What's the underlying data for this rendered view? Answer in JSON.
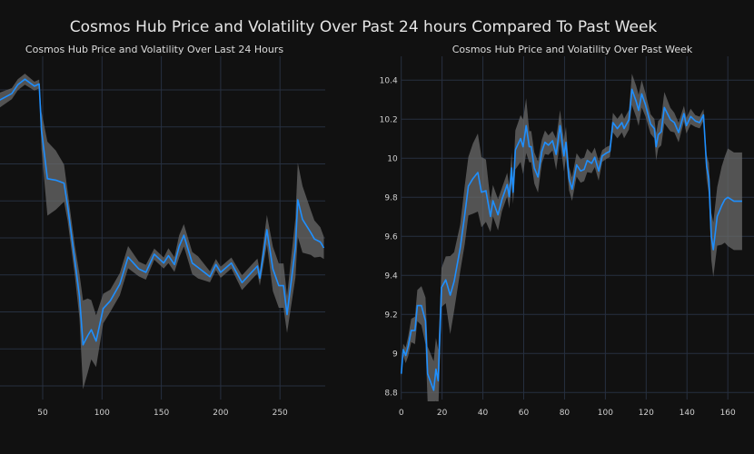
{
  "title": "Cosmos Hub Price and Volatility Over Past 24 hours Compared To Past Week",
  "colors": {
    "background": "#111111",
    "grid": "#273040",
    "line": "#1e8fff",
    "band": "#6a6a6a"
  },
  "chart_data": [
    {
      "type": "line",
      "title": "Cosmos Hub Price and Volatility Over Last 24 Hours",
      "xlim": [
        0,
        287
      ],
      "ylim": [
        9.35,
        10.29
      ],
      "xticks": [
        50,
        100,
        150,
        200,
        250
      ],
      "xtick_labels": [
        "50",
        "100",
        "150",
        "200",
        "250"
      ],
      "ygrid": [
        9.4,
        9.5,
        9.6,
        9.7,
        9.8,
        9.9,
        10.0,
        10.1,
        10.2
      ],
      "x": [
        0,
        14,
        24,
        29,
        35,
        43,
        47,
        49,
        54,
        61,
        68,
        71,
        77,
        81,
        84,
        88,
        91,
        95,
        101,
        107,
        115,
        122,
        131,
        137,
        144,
        152,
        156,
        161,
        165,
        169,
        176,
        181,
        191,
        196,
        200,
        209,
        218,
        226,
        231,
        233,
        239,
        244,
        249,
        253,
        256,
        263,
        265,
        269,
        276,
        279,
        284,
        287
      ],
      "price": [
        10.15,
        10.173,
        10.19,
        10.214,
        10.229,
        10.21,
        10.216,
        10.09,
        9.96,
        9.956,
        9.948,
        9.887,
        9.74,
        9.642,
        9.511,
        9.536,
        9.552,
        9.521,
        9.609,
        9.63,
        9.675,
        9.748,
        9.716,
        9.707,
        9.756,
        9.732,
        9.752,
        9.728,
        9.777,
        9.807,
        9.732,
        9.72,
        9.695,
        9.728,
        9.707,
        9.732,
        9.679,
        9.707,
        9.724,
        9.691,
        9.822,
        9.716,
        9.671,
        9.671,
        9.593,
        9.773,
        9.903,
        9.85,
        9.814,
        9.797,
        9.789,
        9.773
      ],
      "band": [
        0.02,
        0.02,
        0.015,
        0.015,
        0.015,
        0.012,
        0.012,
        0.05,
        0.1,
        0.08,
        0.05,
        0.04,
        0.04,
        0.06,
        0.12,
        0.1,
        0.08,
        0.07,
        0.04,
        0.03,
        0.03,
        0.03,
        0.02,
        0.02,
        0.015,
        0.015,
        0.02,
        0.02,
        0.03,
        0.03,
        0.03,
        0.03,
        0.015,
        0.015,
        0.015,
        0.015,
        0.02,
        0.02,
        0.02,
        0.02,
        0.04,
        0.06,
        0.06,
        0.06,
        0.05,
        0.08,
        0.1,
        0.09,
        0.06,
        0.05,
        0.04,
        0.03
      ]
    },
    {
      "type": "line",
      "title": "Cosmos Hub Price and Volatility Over Past Week",
      "xlim": [
        0,
        167
      ],
      "ylim": [
        8.72,
        10.52
      ],
      "xticks": [
        0,
        20,
        40,
        60,
        80,
        100,
        120,
        140,
        160
      ],
      "xtick_labels": [
        "0",
        "20",
        "40",
        "60",
        "80",
        "100",
        "120",
        "140",
        "160"
      ],
      "yticks": [
        8.8,
        9.0,
        9.2,
        9.4,
        9.6,
        9.8,
        10.0,
        10.2,
        10.4
      ],
      "ytick_labels": [
        "8.8",
        "9",
        "9.2",
        "9.4",
        "9.6",
        "9.8",
        "10",
        "10.2",
        "10.4"
      ],
      "x": [
        0,
        1,
        2.2,
        3.4,
        4.9,
        6.7,
        7.9,
        9.9,
        11.9,
        12.9,
        15.9,
        17,
        18.1,
        19.7,
        21.8,
        24,
        25.9,
        28.9,
        31.1,
        32.9,
        35.1,
        37.5,
        39.3,
        41.5,
        43.7,
        44.9,
        47.4,
        49.3,
        51.9,
        52.9,
        54.1,
        54.8,
        55.9,
        58.5,
        59.7,
        61.2,
        62.7,
        63.7,
        65.2,
        67,
        68.9,
        70.4,
        72.1,
        74.1,
        75.9,
        77.8,
        79.7,
        80.7,
        82.2,
        83.7,
        85.9,
        87.9,
        89.6,
        91.1,
        93.3,
        94.8,
        96.7,
        98.5,
        100.7,
        102.2,
        103.7,
        105.9,
        108.1,
        109.2,
        111.6,
        113,
        115.1,
        116.3,
        117.8,
        119.6,
        122.2,
        124,
        124.9,
        125.9,
        127.4,
        128.9,
        131.9,
        133.8,
        135.9,
        138.5,
        139.7,
        141.8,
        144.1,
        146.2,
        148.1,
        149.6,
        150.7,
        151.9,
        152.9,
        154.8,
        157,
        158.5,
        160,
        163,
        167
      ],
      "price": [
        8.896,
        9.02,
        8.99,
        9.036,
        9.118,
        9.118,
        9.245,
        9.245,
        9.167,
        8.896,
        8.811,
        8.92,
        8.86,
        9.338,
        9.377,
        9.299,
        9.369,
        9.54,
        9.71,
        9.857,
        9.896,
        9.927,
        9.826,
        9.834,
        9.702,
        9.783,
        9.71,
        9.788,
        9.865,
        9.803,
        9.95,
        9.826,
        10.043,
        10.101,
        10.059,
        10.167,
        10.059,
        10.059,
        9.95,
        9.904,
        10.036,
        10.082,
        10.067,
        10.09,
        10.02,
        10.167,
        10.012,
        10.082,
        9.896,
        9.842,
        9.966,
        9.935,
        9.943,
        9.989,
        9.974,
        10.005,
        9.935,
        10.012,
        10.028,
        10.036,
        10.183,
        10.152,
        10.183,
        10.152,
        10.198,
        10.353,
        10.291,
        10.245,
        10.33,
        10.276,
        10.175,
        10.152,
        10.059,
        10.121,
        10.136,
        10.26,
        10.198,
        10.183,
        10.132,
        10.229,
        10.167,
        10.214,
        10.191,
        10.183,
        10.222,
        9.958,
        9.896,
        9.601,
        9.532,
        9.702,
        9.757,
        9.788,
        9.8,
        9.78,
        9.78
      ],
      "band": [
        0.02,
        0.03,
        0.04,
        0.05,
        0.06,
        0.07,
        0.08,
        0.1,
        0.12,
        0.14,
        0.15,
        0.16,
        0.16,
        0.1,
        0.12,
        0.2,
        0.15,
        0.12,
        0.15,
        0.15,
        0.18,
        0.2,
        0.18,
        0.16,
        0.08,
        0.08,
        0.08,
        0.06,
        0.06,
        0.06,
        0.08,
        0.06,
        0.1,
        0.12,
        0.14,
        0.14,
        0.08,
        0.08,
        0.08,
        0.08,
        0.06,
        0.06,
        0.05,
        0.05,
        0.08,
        0.08,
        0.08,
        0.08,
        0.06,
        0.06,
        0.06,
        0.06,
        0.06,
        0.06,
        0.05,
        0.05,
        0.05,
        0.03,
        0.03,
        0.03,
        0.05,
        0.05,
        0.05,
        0.05,
        0.05,
        0.08,
        0.08,
        0.08,
        0.07,
        0.06,
        0.05,
        0.05,
        0.07,
        0.07,
        0.07,
        0.08,
        0.06,
        0.05,
        0.05,
        0.04,
        0.04,
        0.04,
        0.03,
        0.03,
        0.03,
        0.06,
        0.08,
        0.12,
        0.14,
        0.15,
        0.2,
        0.22,
        0.25,
        0.25,
        0.25
      ]
    }
  ]
}
